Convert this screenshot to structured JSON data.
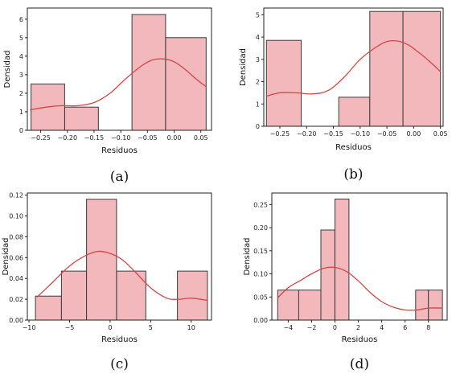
{
  "chart_data": [
    {
      "type": "histogram",
      "caption": "(a)",
      "xlabel": "Residuos",
      "ylabel": "Densidad",
      "xlim": [
        -0.275,
        0.07
      ],
      "ylim": [
        0,
        6.6
      ],
      "xticks": [
        -0.25,
        -0.2,
        -0.15,
        -0.1,
        -0.05,
        0.0,
        0.05
      ],
      "xtick_labels": [
        "−0.25",
        "−0.20",
        "−0.15",
        "−0.10",
        "−0.05",
        "0.00",
        "0.05"
      ],
      "yticks": [
        0,
        1,
        2,
        3,
        4,
        5,
        6
      ],
      "ytick_labels": [
        "0",
        "1",
        "2",
        "3",
        "4",
        "5",
        "6"
      ],
      "bars": [
        {
          "x0": -0.268,
          "x1": -0.205,
          "value": 2.5
        },
        {
          "x0": -0.205,
          "x1": -0.142,
          "value": 1.25
        },
        {
          "x0": -0.142,
          "x1": -0.079,
          "value": 0
        },
        {
          "x0": -0.079,
          "x1": -0.016,
          "value": 6.25
        },
        {
          "x0": -0.016,
          "x1": 0.06,
          "value": 5.0
        }
      ],
      "kde": {
        "x": [
          -0.27,
          -0.24,
          -0.21,
          -0.18,
          -0.15,
          -0.12,
          -0.09,
          -0.06,
          -0.04,
          -0.02,
          0.0,
          0.02,
          0.04,
          0.06
        ],
        "y": [
          1.1,
          1.25,
          1.33,
          1.33,
          1.5,
          2.0,
          2.8,
          3.5,
          3.8,
          3.85,
          3.7,
          3.3,
          2.8,
          2.35
        ]
      }
    },
    {
      "type": "histogram",
      "caption": "(b)",
      "xlabel": "Residuos",
      "ylabel": "Densidad",
      "xlim": [
        -0.28,
        0.055
      ],
      "ylim": [
        0,
        5.3
      ],
      "xticks": [
        -0.25,
        -0.2,
        -0.15,
        -0.1,
        -0.05,
        0.0,
        0.05
      ],
      "xtick_labels": [
        "−0.25",
        "−0.20",
        "−0.15",
        "−0.10",
        "−0.05",
        "0.00",
        "0.05"
      ],
      "yticks": [
        0,
        1,
        2,
        3,
        4,
        5
      ],
      "ytick_labels": [
        "0",
        "1",
        "2",
        "3",
        "4",
        "5"
      ],
      "bars": [
        {
          "x0": -0.275,
          "x1": -0.21,
          "value": 3.85
        },
        {
          "x0": -0.21,
          "x1": -0.14,
          "value": 0
        },
        {
          "x0": -0.14,
          "x1": -0.082,
          "value": 1.3
        },
        {
          "x0": -0.082,
          "x1": -0.02,
          "value": 5.15
        },
        {
          "x0": -0.02,
          "x1": 0.05,
          "value": 5.15
        }
      ],
      "kde": {
        "x": [
          -0.275,
          -0.25,
          -0.22,
          -0.19,
          -0.16,
          -0.13,
          -0.1,
          -0.07,
          -0.05,
          -0.03,
          -0.01,
          0.01,
          0.03,
          0.05
        ],
        "y": [
          1.35,
          1.5,
          1.5,
          1.45,
          1.6,
          2.2,
          3.0,
          3.55,
          3.8,
          3.82,
          3.65,
          3.3,
          2.9,
          2.45
        ]
      }
    },
    {
      "type": "histogram",
      "caption": "(c)",
      "xlabel": "Residuos",
      "ylabel": "Densidad",
      "xlim": [
        -10.2,
        12.5
      ],
      "ylim": [
        0,
        0.122
      ],
      "xticks": [
        -10,
        -5,
        0,
        5,
        10
      ],
      "xtick_labels": [
        "−10",
        "−5",
        "0",
        "5",
        "10"
      ],
      "yticks": [
        0,
        0.02,
        0.04,
        0.06,
        0.08,
        0.1,
        0.12
      ],
      "ytick_labels": [
        "0.00",
        "0.02",
        "0.04",
        "0.06",
        "0.08",
        "0.10",
        "0.12"
      ],
      "bars": [
        {
          "x0": -9.2,
          "x1": -6.0,
          "value": 0.023
        },
        {
          "x0": -6.0,
          "x1": -2.9,
          "value": 0.047
        },
        {
          "x0": -2.9,
          "x1": 0.8,
          "value": 0.116
        },
        {
          "x0": 0.8,
          "x1": 4.4,
          "value": 0.047
        },
        {
          "x0": 4.4,
          "x1": 8.3,
          "value": 0
        },
        {
          "x0": 8.3,
          "x1": 12.0,
          "value": 0.047
        }
      ],
      "kde": {
        "x": [
          -9,
          -7,
          -5,
          -3,
          -1.5,
          0,
          1.5,
          3,
          5,
          7,
          8.5,
          10,
          12
        ],
        "y": [
          0.022,
          0.037,
          0.052,
          0.062,
          0.066,
          0.064,
          0.058,
          0.047,
          0.031,
          0.021,
          0.02,
          0.021,
          0.019
        ]
      }
    },
    {
      "type": "histogram",
      "caption": "(d)",
      "xlabel": "Residuos",
      "ylabel": "Densidad",
      "xlim": [
        -5.4,
        9.6
      ],
      "ylim": [
        0,
        0.275
      ],
      "xticks": [
        -4,
        -2,
        0,
        2,
        4,
        6,
        8
      ],
      "xtick_labels": [
        "−4",
        "−2",
        "0",
        "2",
        "4",
        "6",
        "8"
      ],
      "yticks": [
        0,
        0.05,
        0.1,
        0.15,
        0.2,
        0.25
      ],
      "ytick_labels": [
        "0.00",
        "0.05",
        "0.10",
        "0.15",
        "0.20",
        "0.25"
      ],
      "bars": [
        {
          "x0": -4.9,
          "x1": -3.1,
          "value": 0.065
        },
        {
          "x0": -3.1,
          "x1": -1.2,
          "value": 0.065
        },
        {
          "x0": -1.2,
          "x1": 0.0,
          "value": 0.195
        },
        {
          "x0": 0.0,
          "x1": 1.2,
          "value": 0.262
        },
        {
          "x0": 1.2,
          "x1": 6.9,
          "value": 0
        },
        {
          "x0": 6.9,
          "x1": 8.0,
          "value": 0.065
        },
        {
          "x0": 8.0,
          "x1": 9.2,
          "value": 0.065
        }
      ],
      "kde": {
        "x": [
          -4.9,
          -4,
          -3,
          -2,
          -1,
          0,
          1,
          2,
          3,
          4,
          5,
          6,
          7,
          8,
          9.2
        ],
        "y": [
          0.048,
          0.07,
          0.085,
          0.1,
          0.112,
          0.114,
          0.105,
          0.085,
          0.06,
          0.04,
          0.028,
          0.022,
          0.022,
          0.026,
          0.026
        ]
      }
    }
  ],
  "colors": {
    "bar_fill": "#f2b8bc",
    "bar_edge": "#3a3a3a",
    "kde_line": "#d64545",
    "axis": "#222222"
  }
}
